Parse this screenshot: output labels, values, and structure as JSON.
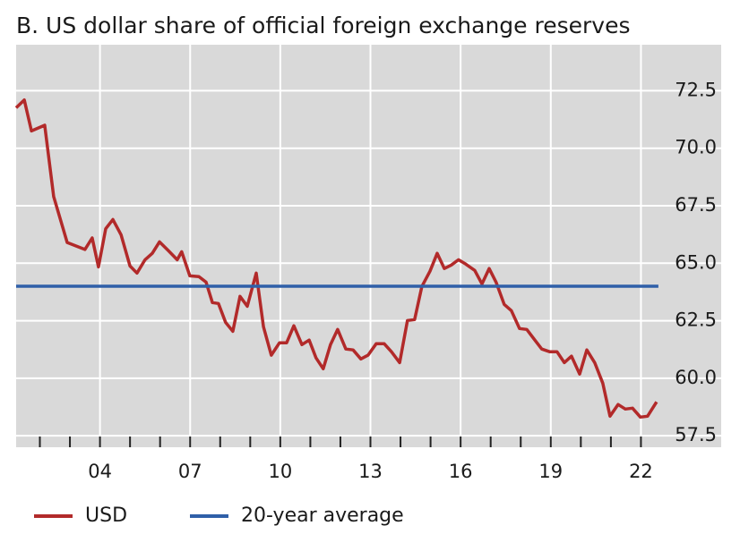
{
  "chart_data": {
    "type": "line",
    "title": "B. US dollar share of official foreign exchange reserves",
    "series": [
      {
        "name": "USD",
        "color": "#b22a2a",
        "x": [
          2001.21,
          2001.48,
          2001.72,
          2002.16,
          2002.46,
          2002.91,
          2003.5,
          2003.74,
          2003.95,
          2004.19,
          2004.43,
          2004.7,
          2005.0,
          2005.23,
          2005.5,
          2005.74,
          2005.98,
          2006.28,
          2006.57,
          2006.72,
          2006.99,
          2007.29,
          2007.53,
          2007.74,
          2007.94,
          2008.18,
          2008.42,
          2008.66,
          2008.9,
          2009.2,
          2009.44,
          2009.7,
          2009.97,
          2010.21,
          2010.45,
          2010.72,
          2010.96,
          2011.19,
          2011.43,
          2011.67,
          2011.91,
          2012.18,
          2012.42,
          2012.68,
          2012.92,
          2013.19,
          2013.46,
          2013.7,
          2013.97,
          2014.23,
          2014.47,
          2014.71,
          2014.98,
          2015.22,
          2015.46,
          2015.69,
          2015.93,
          2016.17,
          2016.47,
          2016.71,
          2016.95,
          2017.18,
          2017.45,
          2017.69,
          2017.96,
          2018.2,
          2018.47,
          2018.7,
          2018.97,
          2019.21,
          2019.45,
          2019.69,
          2019.96,
          2020.2,
          2020.46,
          2020.73,
          2020.97,
          2021.24,
          2021.48,
          2021.72,
          2021.98,
          2022.22,
          2022.52
        ],
        "values": [
          71.76,
          72.1,
          70.75,
          71.0,
          67.9,
          65.9,
          65.6,
          66.1,
          64.84,
          66.5,
          66.9,
          66.24,
          64.88,
          64.57,
          65.15,
          65.43,
          65.93,
          65.54,
          65.15,
          65.5,
          64.45,
          64.42,
          64.18,
          63.29,
          63.25,
          62.43,
          62.04,
          63.56,
          63.13,
          64.57,
          62.24,
          61.0,
          61.54,
          61.54,
          62.28,
          61.46,
          61.66,
          60.88,
          60.41,
          61.46,
          62.12,
          61.27,
          61.23,
          60.84,
          61.0,
          61.5,
          61.5,
          61.15,
          60.68,
          62.51,
          62.55,
          63.99,
          64.65,
          65.43,
          64.77,
          64.92,
          65.15,
          64.96,
          64.69,
          64.1,
          64.77,
          64.18,
          63.21,
          62.94,
          62.16,
          62.12,
          61.66,
          61.27,
          61.15,
          61.15,
          60.68,
          60.96,
          60.18,
          61.23,
          60.68,
          59.79,
          58.35,
          58.86,
          58.66,
          58.7,
          58.31,
          58.35,
          58.97
        ]
      },
      {
        "name": "20-year average",
        "color": "#2f5fa8",
        "x": [
          2001.21,
          2022.58
        ],
        "values": [
          64.0,
          64.0
        ]
      }
    ],
    "xlim": [
      2001.21,
      2024.67
    ],
    "xticks": [
      {
        "value": 2004,
        "label": "04"
      },
      {
        "value": 2007,
        "label": "07"
      },
      {
        "value": 2010,
        "label": "10"
      },
      {
        "value": 2013,
        "label": "13"
      },
      {
        "value": 2016,
        "label": "16"
      },
      {
        "value": 2019,
        "label": "19"
      },
      {
        "value": 2022,
        "label": "22"
      }
    ],
    "xminorticks": [
      2002,
      2003,
      2004,
      2005,
      2006,
      2007,
      2008,
      2009,
      2010,
      2011,
      2012,
      2013,
      2014,
      2015,
      2016,
      2017,
      2018,
      2019,
      2020,
      2021,
      2022
    ],
    "ylim": [
      57,
      74.5
    ],
    "yticks": [
      {
        "value": 57.5,
        "label": "57.5"
      },
      {
        "value": 60,
        "label": "60.0"
      },
      {
        "value": 62.5,
        "label": "62.5"
      },
      {
        "value": 65,
        "label": "65.0"
      },
      {
        "value": 67.5,
        "label": "67.5"
      },
      {
        "value": 70,
        "label": "70.0"
      },
      {
        "value": 72.5,
        "label": "72.5"
      }
    ],
    "grid": true,
    "background": "#d9d9d9"
  }
}
